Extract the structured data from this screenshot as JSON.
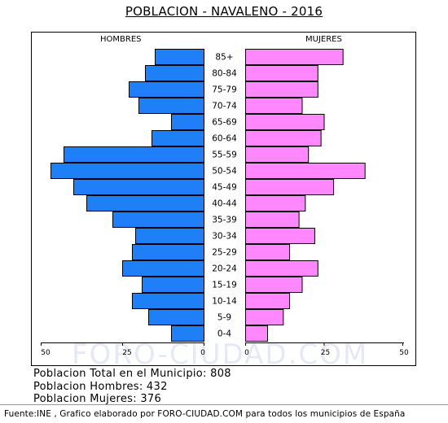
{
  "page": {
    "title": "POBLACION - NAVALENO - 2016",
    "left_label": "HOMBRES",
    "right_label": "MUJERES",
    "watermark": "FORO-CIUDAD.COM",
    "summary": {
      "total": "Poblacion Total en el Municipio: 808",
      "men": "Poblacion Hombres: 432",
      "women": "Poblacion Mujeres: 376"
    },
    "footer": "Fuente:INE , Grafico elaborado por FORO-CIUDAD.COM para todos los municipios de España"
  },
  "chart_data": {
    "type": "bar",
    "orientation": "horizontal-pyramid",
    "categories": [
      "85+",
      "80-84",
      "75-79",
      "70-74",
      "65-69",
      "60-64",
      "55-59",
      "50-54",
      "45-49",
      "40-44",
      "35-39",
      "30-34",
      "25-29",
      "20-24",
      "15-19",
      "10-14",
      "5-9",
      "0-4"
    ],
    "series": [
      {
        "name": "HOMBRES",
        "color": "#1e7ff7",
        "values": [
          15,
          18,
          23,
          20,
          10,
          16,
          43,
          47,
          40,
          36,
          28,
          21,
          22,
          25,
          19,
          22,
          17,
          10
        ]
      },
      {
        "name": "MUJERES",
        "color": "#ff88ff",
        "values": [
          31,
          23,
          23,
          18,
          25,
          24,
          20,
          38,
          28,
          19,
          17,
          22,
          14,
          23,
          18,
          14,
          12,
          7
        ]
      }
    ],
    "x_ticks_left": [
      "50",
      "25",
      "0"
    ],
    "x_ticks_right": [
      "0",
      "25",
      "50"
    ],
    "xlim": [
      0,
      50
    ]
  }
}
